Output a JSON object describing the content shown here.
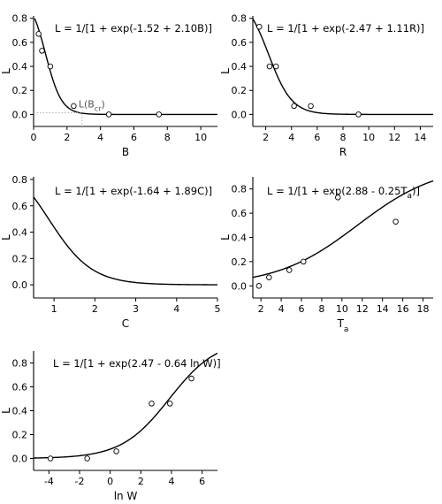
{
  "chart_data": [
    {
      "type": "line",
      "equation": "L = 1/[1 + exp(-1.52 + 2.10B)]",
      "xlabel": "B",
      "ylabel": "L",
      "xlim": [
        0,
        11
      ],
      "ylim": [
        -0.1,
        0.82
      ],
      "xticks": [
        "0",
        "2",
        "4",
        "6",
        "8",
        "10"
      ],
      "yticks": [
        "0.0",
        "0.2",
        "0.4",
        "0.6",
        "0.8"
      ],
      "model": {
        "form": "x",
        "a": -1.52,
        "b": 2.1
      },
      "points": [
        {
          "x": 0.3,
          "y": 0.67
        },
        {
          "x": 0.5,
          "y": 0.53
        },
        {
          "x": 1.0,
          "y": 0.4
        },
        {
          "x": 2.4,
          "y": 0.07
        },
        {
          "x": 4.5,
          "y": 0.0
        },
        {
          "x": 7.5,
          "y": 0.0
        }
      ],
      "annotation": {
        "base": "L(B",
        "sub": "cr",
        "close": ")",
        "x": 2.9,
        "y": 0.015
      }
    },
    {
      "type": "line",
      "equation": "L = 1/[1 + exp(-2.47 + 1.11R)]",
      "xlabel": "R",
      "ylabel": "L",
      "xlim": [
        1,
        15
      ],
      "ylim": [
        -0.1,
        0.82
      ],
      "xticks": [
        "2",
        "4",
        "6",
        "8",
        "10",
        "12",
        "14"
      ],
      "yticks": [
        "0.0",
        "0.2",
        "0.4",
        "0.6",
        "0.8"
      ],
      "model": {
        "form": "x",
        "a": -2.47,
        "b": 1.11
      },
      "points": [
        {
          "x": 1.5,
          "y": 0.73
        },
        {
          "x": 2.3,
          "y": 0.4
        },
        {
          "x": 2.8,
          "y": 0.4
        },
        {
          "x": 4.2,
          "y": 0.07
        },
        {
          "x": 5.5,
          "y": 0.07
        },
        {
          "x": 9.2,
          "y": 0.0
        }
      ]
    },
    {
      "type": "line",
      "equation": "L = 1/[1 + exp(-1.64 + 1.89C)]",
      "xlabel": "C",
      "ylabel": "L",
      "xlim": [
        0.5,
        5
      ],
      "ylim": [
        -0.1,
        0.82
      ],
      "xticks": [
        "1",
        "2",
        "3",
        "4",
        "5"
      ],
      "yticks": [
        "0.0",
        "0.2",
        "0.4",
        "0.6",
        "0.8"
      ],
      "model": {
        "form": "x",
        "a": -1.64,
        "b": 1.89
      },
      "points": []
    },
    {
      "type": "line",
      "equation": "L = 1/[1 + exp(2.88 - 0.25T",
      "equation_sub": "a",
      "equation_end": ")]",
      "xlabel": "T",
      "xlabel_sub": "a",
      "ylabel": "L",
      "xlim": [
        1.2,
        19
      ],
      "ylim": [
        -0.1,
        0.9
      ],
      "xticks": [
        "2",
        "4",
        "6",
        "8",
        "10",
        "12",
        "14",
        "16",
        "18"
      ],
      "yticks": [
        "0.0",
        "0.2",
        "0.4",
        "0.6",
        "0.8"
      ],
      "model": {
        "form": "x",
        "a": 2.88,
        "b": -0.25
      },
      "points": [
        {
          "x": 1.8,
          "y": 0.0
        },
        {
          "x": 2.8,
          "y": 0.07
        },
        {
          "x": 4.8,
          "y": 0.13
        },
        {
          "x": 6.2,
          "y": 0.2
        },
        {
          "x": 9.6,
          "y": 0.73
        },
        {
          "x": 15.3,
          "y": 0.53
        }
      ]
    },
    {
      "type": "line",
      "equation": "L = 1/[1 + exp(2.47 - 0.64 ln W)]",
      "xlabel": "ln W",
      "ylabel": "L",
      "xlim": [
        -5,
        7
      ],
      "ylim": [
        -0.1,
        0.9
      ],
      "xticks": [
        "-4",
        "-2",
        "0",
        "2",
        "4",
        "6"
      ],
      "yticks": [
        "0.0",
        "0.2",
        "0.4",
        "0.6",
        "0.8"
      ],
      "model": {
        "form": "x",
        "a": 2.47,
        "b": -0.64
      },
      "points": [
        {
          "x": -3.9,
          "y": 0.0
        },
        {
          "x": -1.5,
          "y": 0.0
        },
        {
          "x": 0.4,
          "y": 0.06
        },
        {
          "x": 2.7,
          "y": 0.46
        },
        {
          "x": 3.9,
          "y": 0.46
        },
        {
          "x": 5.3,
          "y": 0.67
        }
      ]
    }
  ]
}
